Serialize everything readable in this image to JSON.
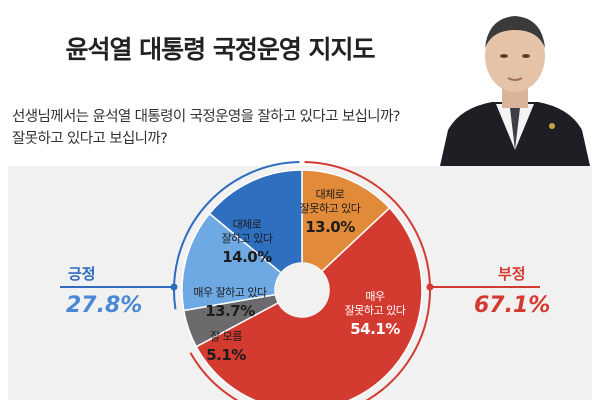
{
  "title": "윤석열 대통령 국정운영 지지도",
  "question": {
    "line1": "선생님께서는 윤석열 대통령이 국정운영을 잘하고 있다고 보십니까?",
    "line2": "잘못하고 있다고 보십니까?"
  },
  "positive": {
    "label": "긍정",
    "value": "27.8%"
  },
  "negative": {
    "label": "부정",
    "value": "67.1%"
  },
  "colors": {
    "positive": "#2f6bbf",
    "negative": "#d33b30",
    "panel": "#f1f1f2"
  },
  "chart_data": {
    "type": "pie",
    "donut": true,
    "categories": [
      "대체로 잘못하고 있다",
      "매우 잘못하고 있다",
      "잘 모름",
      "매우 잘하고 있다",
      "대체로 잘하고 있다"
    ],
    "values": [
      13.0,
      54.1,
      5.1,
      13.7,
      14.0
    ],
    "value_labels": [
      "13.0%",
      "54.1%",
      "5.1%",
      "13.7%",
      "14.0%"
    ],
    "colors": [
      "#e08a3a",
      "#d33b30",
      "#6b6b6e",
      "#6fa9e3",
      "#2f6fc0"
    ],
    "groups": {
      "긍정": [
        "매우 잘하고 있다",
        "대체로 잘하고 있다"
      ],
      "부정": [
        "대체로 잘못하고 있다",
        "매우 잘못하고 있다"
      ]
    },
    "slice_labels": [
      {
        "line1": "대체로",
        "line2": "잘못하고 있다",
        "value": "13.0%"
      },
      {
        "line1": "매우",
        "line2": "잘못하고 있다",
        "value": "54.1%"
      },
      {
        "line1": "잘 모름",
        "line2": "",
        "value": "5.1%"
      },
      {
        "line1": "매우 잘하고 있다",
        "line2": "",
        "value": "13.7%"
      },
      {
        "line1": "대체로",
        "line2": "잘하고 있다",
        "value": "14.0%"
      }
    ]
  }
}
